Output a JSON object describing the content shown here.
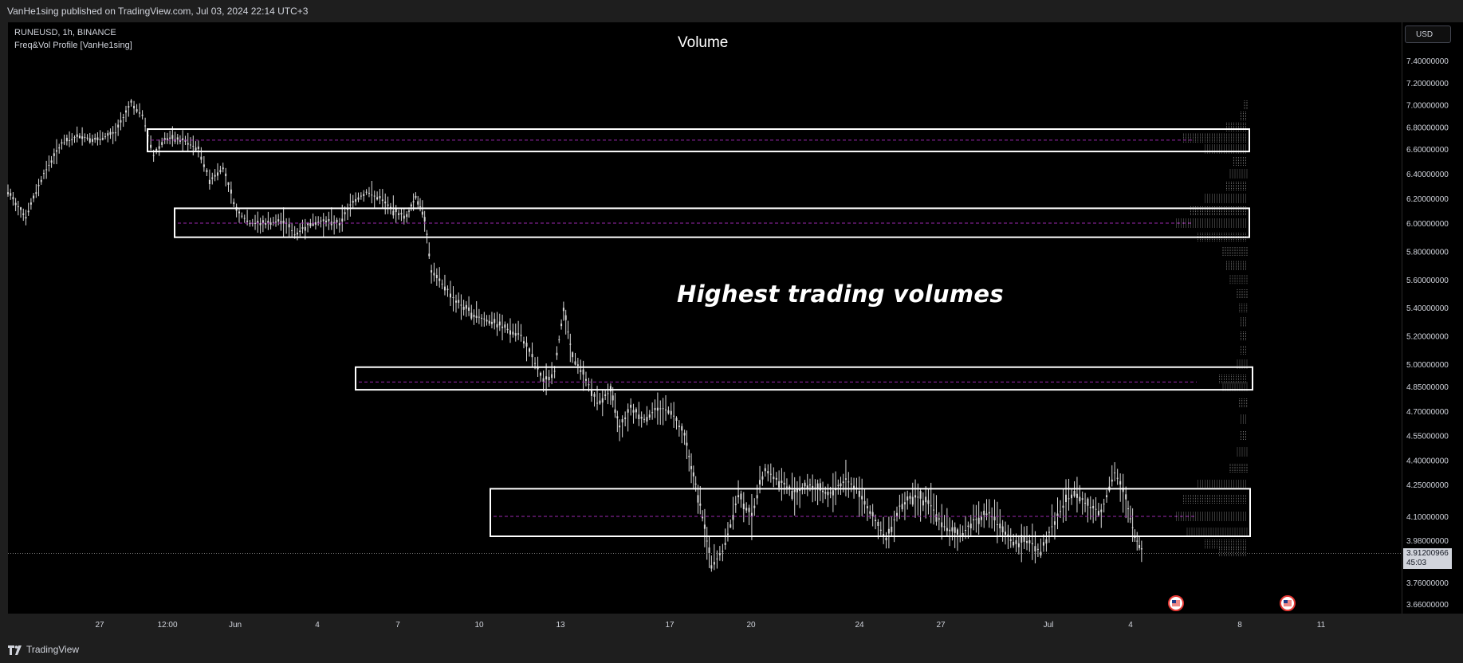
{
  "header": {
    "published_text": "VanHe1sing published on TradingView.com, Jul 03, 2024 22:14 UTC+3"
  },
  "legend": {
    "symbol_line": "RUNEUSD, 1h, BINANCE",
    "indicator_line": "Freq&Vol Profile [VanHe1sing]"
  },
  "chart_data": {
    "type": "candlestick",
    "title": "Volume",
    "annotation": "Highest trading volumes",
    "symbol": "RUNEUSD",
    "interval": "1h",
    "exchange": "BINANCE",
    "currency": "USD",
    "x_tick_labels": [
      "27",
      "12:00",
      "Jun",
      "4",
      "7",
      "10",
      "13",
      "17",
      "20",
      "24",
      "27",
      "Jul",
      "4",
      "8",
      "11"
    ],
    "y_tick_labels": [
      "7.40000000",
      "7.20000000",
      "7.00000000",
      "6.80000000",
      "6.60000000",
      "6.40000000",
      "6.20000000",
      "6.00000000",
      "5.80000000",
      "5.60000000",
      "5.40000000",
      "5.20000000",
      "5.00000000",
      "4.85000000",
      "4.70000000",
      "4.55000000",
      "4.40000000",
      "4.25000000",
      "4.10000000",
      "3.98000000",
      "3.76000000",
      "3.66000000"
    ],
    "last_price": "3.91200966",
    "countdown": "45:03",
    "price_path": [
      [
        0,
        6.25
      ],
      [
        0.8,
        6.05
      ],
      [
        1.6,
        6.4
      ],
      [
        2.4,
        6.65
      ],
      [
        3.2,
        6.72
      ],
      [
        4.0,
        6.68
      ],
      [
        4.8,
        6.75
      ],
      [
        5.5,
        7.02
      ],
      [
        6.0,
        6.9
      ],
      [
        6.5,
        6.55
      ],
      [
        7.0,
        6.7
      ],
      [
        7.8,
        6.68
      ],
      [
        8.5,
        6.6
      ],
      [
        9.0,
        6.35
      ],
      [
        9.6,
        6.45
      ],
      [
        10.2,
        6.1
      ],
      [
        10.8,
        6.0
      ],
      [
        11.5,
        6.0
      ],
      [
        12.3,
        6.02
      ],
      [
        12.8,
        5.92
      ],
      [
        13.5,
        6.0
      ],
      [
        14.2,
        6.02
      ],
      [
        14.8,
        6.0
      ],
      [
        15.4,
        6.18
      ],
      [
        16.0,
        6.25
      ],
      [
        16.6,
        6.2
      ],
      [
        17.2,
        6.1
      ],
      [
        17.8,
        6.05
      ],
      [
        18.2,
        6.22
      ],
      [
        18.6,
        6.05
      ],
      [
        18.9,
        5.65
      ],
      [
        19.5,
        5.55
      ],
      [
        20.0,
        5.45
      ],
      [
        20.8,
        5.35
      ],
      [
        21.6,
        5.3
      ],
      [
        22.3,
        5.25
      ],
      [
        22.9,
        5.2
      ],
      [
        23.4,
        5.05
      ],
      [
        23.9,
        4.88
      ],
      [
        24.4,
        4.95
      ],
      [
        24.8,
        5.4
      ],
      [
        25.2,
        5.05
      ],
      [
        25.8,
        4.9
      ],
      [
        26.3,
        4.75
      ],
      [
        26.9,
        4.82
      ],
      [
        27.3,
        4.6
      ],
      [
        27.8,
        4.72
      ],
      [
        28.4,
        4.65
      ],
      [
        29.0,
        4.72
      ],
      [
        29.6,
        4.7
      ],
      [
        30.2,
        4.55
      ],
      [
        30.6,
        4.3
      ],
      [
        31.0,
        4.1
      ],
      [
        31.4,
        3.85
      ],
      [
        31.9,
        3.92
      ],
      [
        32.6,
        4.2
      ],
      [
        33.2,
        4.1
      ],
      [
        33.8,
        4.35
      ],
      [
        34.3,
        4.28
      ],
      [
        35.0,
        4.22
      ],
      [
        35.8,
        4.25
      ],
      [
        36.6,
        4.2
      ],
      [
        37.4,
        4.28
      ],
      [
        38.0,
        4.22
      ],
      [
        38.6,
        4.1
      ],
      [
        39.2,
        3.98
      ],
      [
        39.8,
        4.15
      ],
      [
        40.5,
        4.2
      ],
      [
        41.2,
        4.15
      ],
      [
        41.8,
        4.05
      ],
      [
        42.5,
        4.0
      ],
      [
        43.1,
        4.08
      ],
      [
        43.8,
        4.12
      ],
      [
        44.4,
        4.02
      ],
      [
        45.0,
        3.96
      ],
      [
        45.6,
        3.98
      ],
      [
        46.1,
        3.92
      ],
      [
        46.6,
        4.05
      ],
      [
        47.1,
        4.15
      ],
      [
        47.6,
        4.22
      ],
      [
        48.2,
        4.15
      ],
      [
        48.8,
        4.12
      ],
      [
        49.4,
        4.32
      ],
      [
        49.9,
        4.18
      ],
      [
        50.3,
        4.0
      ],
      [
        50.7,
        3.91
      ]
    ],
    "highlight_zones": [
      {
        "from": 6.58,
        "to": 6.78,
        "poc": 6.68
      },
      {
        "from": 5.9,
        "to": 6.12,
        "poc": 6.0
      },
      {
        "from": 4.83,
        "to": 4.98,
        "poc": 4.88
      },
      {
        "from": 4.0,
        "to": 4.23,
        "poc": 4.1
      }
    ],
    "volume_profile": [
      {
        "price": 7.0,
        "size": 0.05
      },
      {
        "price": 6.9,
        "size": 0.1
      },
      {
        "price": 6.8,
        "size": 0.3
      },
      {
        "price": 6.7,
        "size": 0.9
      },
      {
        "price": 6.6,
        "size": 0.6
      },
      {
        "price": 6.5,
        "size": 0.2
      },
      {
        "price": 6.4,
        "size": 0.25
      },
      {
        "price": 6.3,
        "size": 0.3
      },
      {
        "price": 6.2,
        "size": 0.6
      },
      {
        "price": 6.1,
        "size": 0.8
      },
      {
        "price": 6.0,
        "size": 1.0
      },
      {
        "price": 5.9,
        "size": 0.7
      },
      {
        "price": 5.8,
        "size": 0.35
      },
      {
        "price": 5.7,
        "size": 0.3
      },
      {
        "price": 5.6,
        "size": 0.25
      },
      {
        "price": 5.5,
        "size": 0.15
      },
      {
        "price": 5.4,
        "size": 0.12
      },
      {
        "price": 5.3,
        "size": 0.1
      },
      {
        "price": 5.2,
        "size": 0.1
      },
      {
        "price": 5.1,
        "size": 0.1
      },
      {
        "price": 5.0,
        "size": 0.15
      },
      {
        "price": 4.9,
        "size": 0.4
      },
      {
        "price": 4.85,
        "size": 0.35
      },
      {
        "price": 4.75,
        "size": 0.12
      },
      {
        "price": 4.65,
        "size": 0.1
      },
      {
        "price": 4.55,
        "size": 0.1
      },
      {
        "price": 4.45,
        "size": 0.15
      },
      {
        "price": 4.35,
        "size": 0.25
      },
      {
        "price": 4.25,
        "size": 0.7
      },
      {
        "price": 4.18,
        "size": 0.9
      },
      {
        "price": 4.1,
        "size": 1.0
      },
      {
        "price": 4.02,
        "size": 0.85
      },
      {
        "price": 3.96,
        "size": 0.6
      },
      {
        "price": 3.92,
        "size": 0.4
      }
    ],
    "x_range": [
      0,
      53
    ],
    "y_scale": "custom"
  },
  "colors": {
    "background": "#000000",
    "frame": "#1e1e1e",
    "candle": "#d9d9d9",
    "zone_border": "#ffffff",
    "poc_line": "#9c27b0",
    "profile": "#c8c8c8"
  },
  "footer": {
    "brand": "TradingView"
  }
}
